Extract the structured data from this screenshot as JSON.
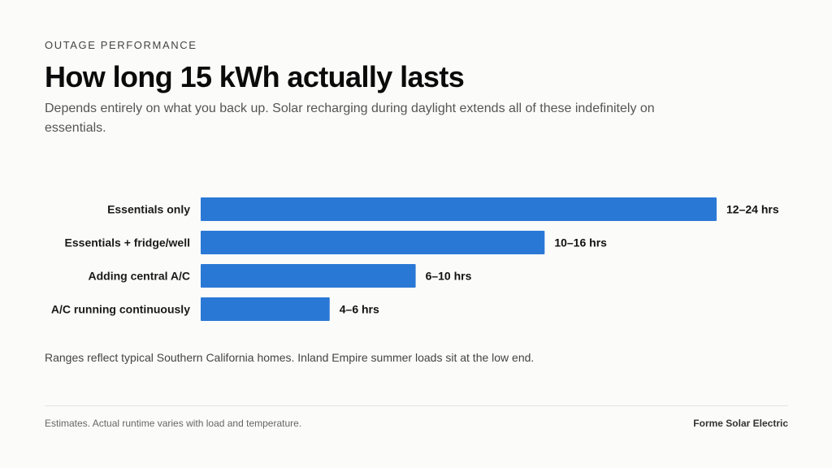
{
  "header": {
    "eyebrow": "OUTAGE PERFORMANCE",
    "title": "How long 15 kWh actually lasts",
    "subtitle": "Depends entirely on what you back up. Solar recharging during daylight extends all of these indefinitely on essentials."
  },
  "note": "Ranges reflect typical Southern California homes. Inland Empire summer loads sit at the low end.",
  "footer": {
    "disclaimer": "Estimates. Actual runtime varies with load and temperature.",
    "brand": "Forme Solar Electric"
  },
  "colors": {
    "bar": "#2a78d6",
    "background": "#fbfbfa"
  },
  "chart_data": {
    "type": "bar",
    "orientation": "horizontal",
    "categories": [
      "Essentials only",
      "Essentials + fridge/well",
      "Adding central A/C",
      "A/C running continuously"
    ],
    "values": [
      24,
      16,
      10,
      6
    ],
    "value_labels": [
      "12–24 hrs",
      "10–16 hrs",
      "6–10 hrs",
      "4–6 hrs"
    ],
    "unit": "hrs",
    "xlim": [
      0,
      24
    ],
    "grid": false,
    "legend": "none"
  }
}
